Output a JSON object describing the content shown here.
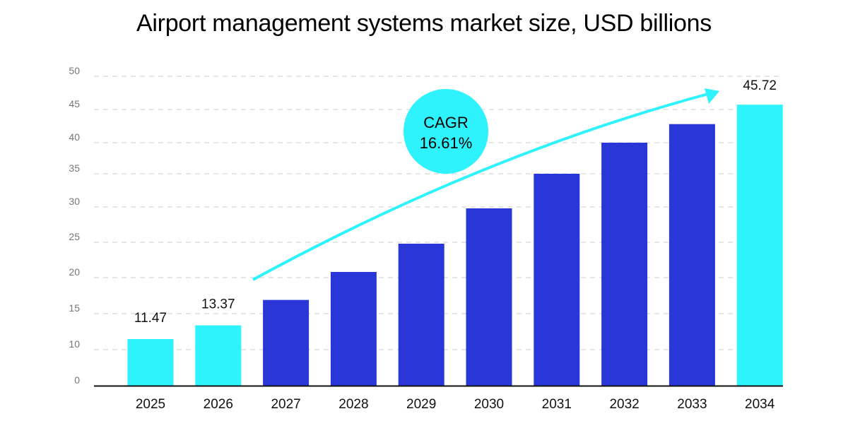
{
  "chart_data": {
    "type": "bar",
    "title": "Airport management systems market size, USD billions",
    "categories": [
      "2025",
      "2026",
      "2027",
      "2028",
      "2029",
      "2030",
      "2031",
      "2032",
      "2033",
      "2034"
    ],
    "values": [
      11.47,
      13.37,
      16.9,
      20.8,
      24.8,
      29.8,
      35.0,
      40.0,
      42.8,
      45.72
    ],
    "data_labels": [
      "11.47",
      "13.37",
      "",
      "",
      "",
      "",
      "",
      "",
      "",
      "45.72"
    ],
    "highlight": [
      true,
      true,
      false,
      false,
      false,
      false,
      false,
      false,
      false,
      true
    ],
    "ylim": [
      0,
      50
    ],
    "yticks": [
      "0",
      "10",
      "15",
      "20",
      "25",
      "30",
      "35",
      "40",
      "45",
      "50"
    ],
    "grid": true,
    "xlabel": "",
    "ylabel": "",
    "annotation": {
      "line1": "CAGR",
      "line2": "16.61%"
    },
    "colors": {
      "highlight": "#2EF2FC",
      "bar": "#2936D8",
      "arrow": "#2EF2FC",
      "grid": "#cccccc",
      "axis": "#111111"
    }
  }
}
